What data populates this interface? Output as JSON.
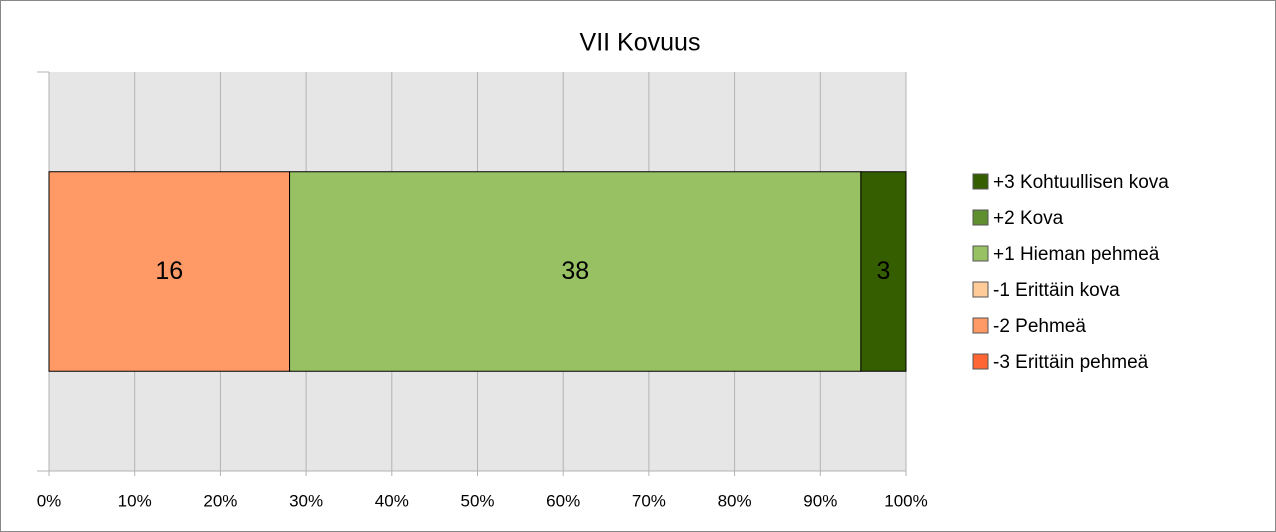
{
  "chart_data": {
    "type": "bar",
    "orientation": "horizontal",
    "stacking": "percent",
    "title": "VII Kovuus",
    "categories": [
      null
    ],
    "series": [
      {
        "name": "-3 Erittäin pehmeä",
        "color": "#ff6633",
        "values": [
          0
        ]
      },
      {
        "name": "-2 Pehmeä",
        "color": "#ff9966",
        "values": [
          16
        ]
      },
      {
        "name": "-1 Erittäin kova",
        "color": "#ffcc99",
        "values": [
          0
        ]
      },
      {
        "name": "+1 Hieman pehmeä",
        "color": "#97c162",
        "values": [
          38
        ]
      },
      {
        "name": "+2 Kova",
        "color": "#5f8f2f",
        "values": [
          0
        ]
      },
      {
        "name": "+3 Kohtuullisen kova",
        "color": "#355e00",
        "values": [
          3
        ]
      }
    ],
    "xlim": [
      0,
      100
    ],
    "xticks": [
      {
        "value": 0,
        "label": "0%"
      },
      {
        "value": 10,
        "label": "10%"
      },
      {
        "value": 20,
        "label": "20%"
      },
      {
        "value": 30,
        "label": "30%"
      },
      {
        "value": 40,
        "label": "40%"
      },
      {
        "value": 50,
        "label": "50%"
      },
      {
        "value": 60,
        "label": "60%"
      },
      {
        "value": 70,
        "label": "70%"
      },
      {
        "value": 80,
        "label": "80%"
      },
      {
        "value": 90,
        "label": "90%"
      },
      {
        "value": 100,
        "label": "100%"
      }
    ],
    "grid": true,
    "legend": "right",
    "legend_order": "reversed"
  }
}
